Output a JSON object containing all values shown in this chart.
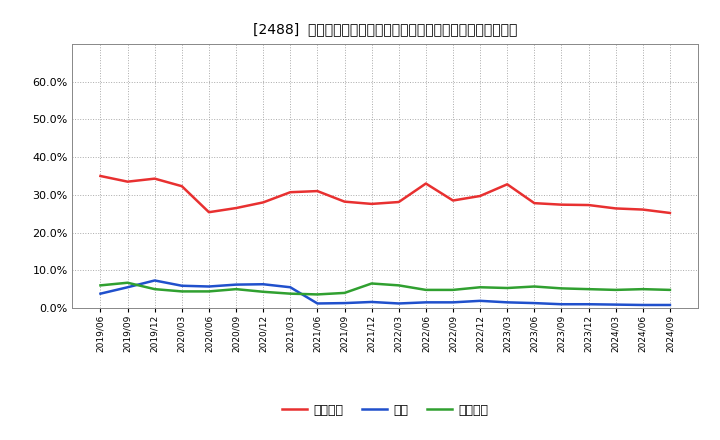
{
  "title": "[2488]  売上債権、在庫、買入債務の総資産に対する比率の推移",
  "x_labels": [
    "2019/06",
    "2019/09",
    "2019/12",
    "2020/03",
    "2020/06",
    "2020/09",
    "2020/12",
    "2021/03",
    "2021/06",
    "2021/09",
    "2021/12",
    "2022/03",
    "2022/06",
    "2022/09",
    "2022/12",
    "2023/03",
    "2023/06",
    "2023/09",
    "2023/12",
    "2024/03",
    "2024/06",
    "2024/09"
  ],
  "uriken": [
    0.35,
    0.335,
    0.343,
    0.323,
    0.254,
    0.265,
    0.28,
    0.307,
    0.31,
    0.282,
    0.276,
    0.281,
    0.33,
    0.285,
    0.297,
    0.328,
    0.278,
    0.274,
    0.273,
    0.264,
    0.261,
    0.252
  ],
  "zaiko": [
    0.038,
    0.055,
    0.073,
    0.059,
    0.057,
    0.062,
    0.063,
    0.055,
    0.012,
    0.013,
    0.016,
    0.012,
    0.015,
    0.015,
    0.019,
    0.015,
    0.013,
    0.01,
    0.01,
    0.009,
    0.008,
    0.008
  ],
  "kaiire": [
    0.06,
    0.067,
    0.05,
    0.044,
    0.044,
    0.05,
    0.043,
    0.038,
    0.036,
    0.04,
    0.065,
    0.06,
    0.048,
    0.048,
    0.055,
    0.053,
    0.057,
    0.052,
    0.05,
    0.048,
    0.05,
    0.048
  ],
  "uriken_color": "#e83030",
  "zaiko_color": "#2050cc",
  "kaiire_color": "#30a030",
  "background_color": "#ffffff",
  "grid_color": "#aaaaaa",
  "ylim": [
    0.0,
    0.7
  ],
  "yticks": [
    0.0,
    0.1,
    0.2,
    0.3,
    0.4,
    0.5,
    0.6
  ],
  "legend_labels": [
    "売上債権",
    "在庫",
    "買入債務"
  ]
}
